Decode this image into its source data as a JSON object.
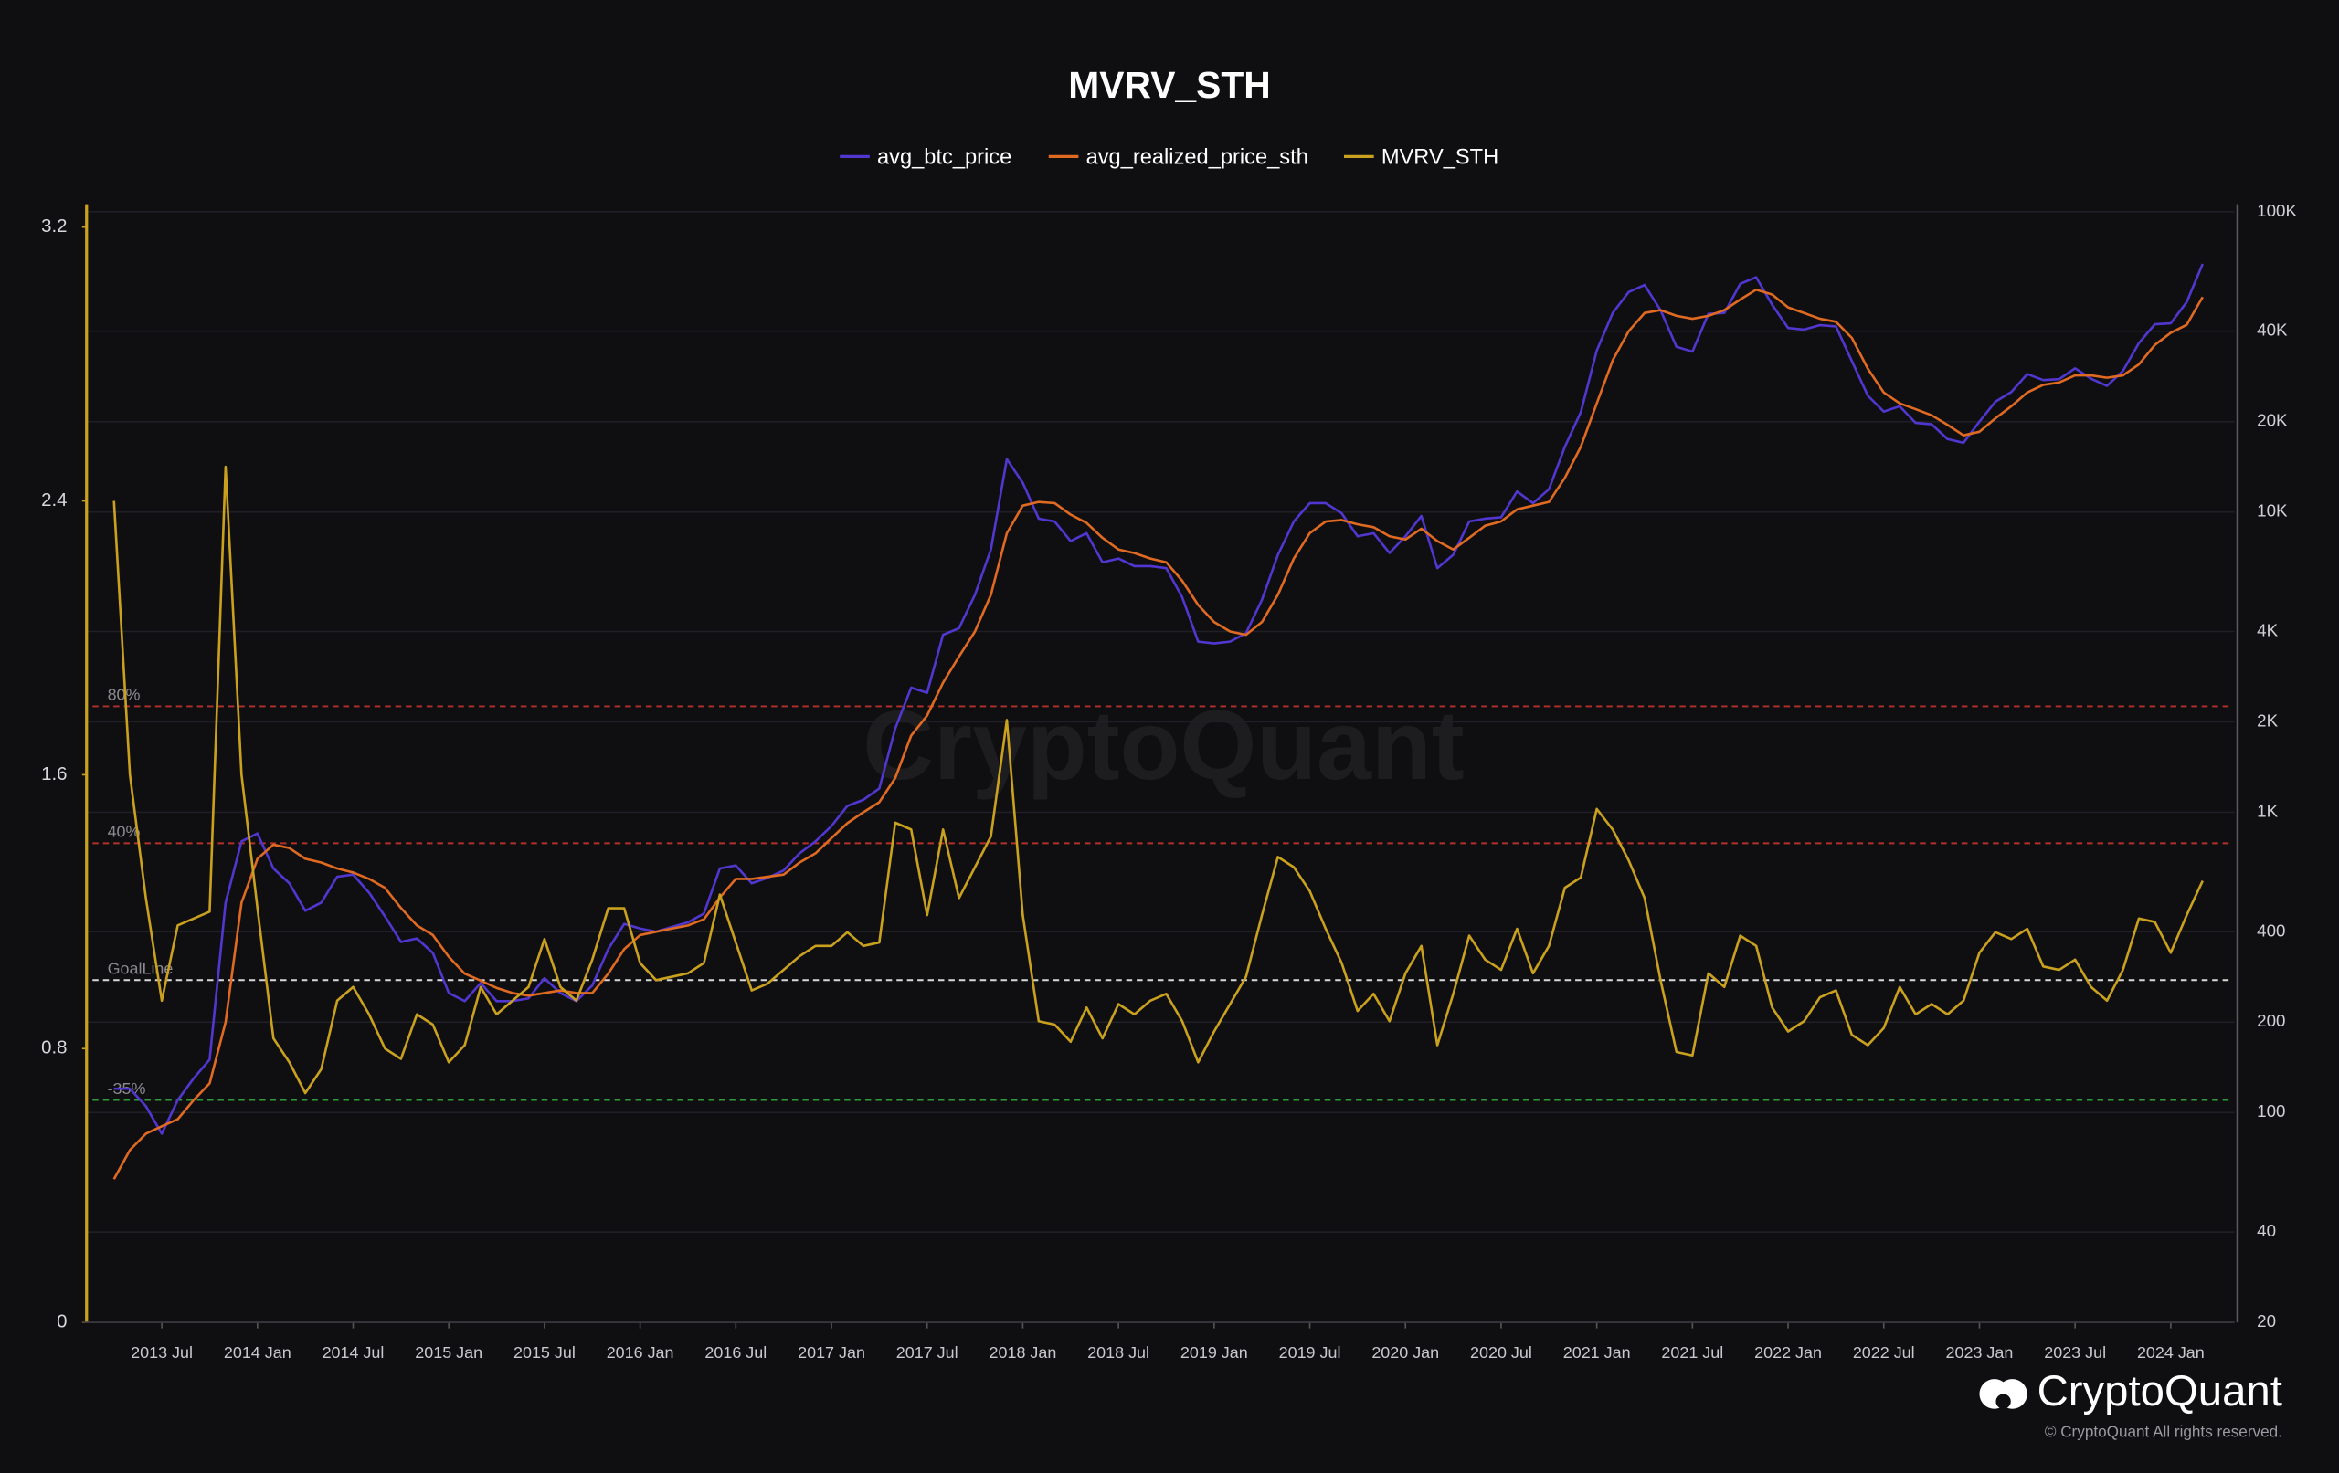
{
  "chart_data": {
    "type": "line",
    "title": "MVRV_STH",
    "watermark": "CryptoQuant",
    "brand": "CryptoQuant",
    "copyright": "© CryptoQuant All rights reserved.",
    "x": [
      "2013-04",
      "2013-05",
      "2013-06",
      "2013-07",
      "2013-08",
      "2013-09",
      "2013-10",
      "2013-11",
      "2013-12",
      "2014-01",
      "2014-02",
      "2014-03",
      "2014-04",
      "2014-05",
      "2014-06",
      "2014-07",
      "2014-08",
      "2014-09",
      "2014-10",
      "2014-11",
      "2014-12",
      "2015-01",
      "2015-02",
      "2015-03",
      "2015-04",
      "2015-05",
      "2015-06",
      "2015-07",
      "2015-08",
      "2015-09",
      "2015-10",
      "2015-11",
      "2015-12",
      "2016-01",
      "2016-02",
      "2016-03",
      "2016-04",
      "2016-05",
      "2016-06",
      "2016-07",
      "2016-08",
      "2016-09",
      "2016-10",
      "2016-11",
      "2016-12",
      "2017-01",
      "2017-02",
      "2017-03",
      "2017-04",
      "2017-05",
      "2017-06",
      "2017-07",
      "2017-08",
      "2017-09",
      "2017-10",
      "2017-11",
      "2017-12",
      "2018-01",
      "2018-02",
      "2018-03",
      "2018-04",
      "2018-05",
      "2018-06",
      "2018-07",
      "2018-08",
      "2018-09",
      "2018-10",
      "2018-11",
      "2018-12",
      "2019-01",
      "2019-02",
      "2019-03",
      "2019-04",
      "2019-05",
      "2019-06",
      "2019-07",
      "2019-08",
      "2019-09",
      "2019-10",
      "2019-11",
      "2019-12",
      "2020-01",
      "2020-02",
      "2020-03",
      "2020-04",
      "2020-05",
      "2020-06",
      "2020-07",
      "2020-08",
      "2020-09",
      "2020-10",
      "2020-11",
      "2020-12",
      "2021-01",
      "2021-02",
      "2021-03",
      "2021-04",
      "2021-05",
      "2021-06",
      "2021-07",
      "2021-08",
      "2021-09",
      "2021-10",
      "2021-11",
      "2021-12",
      "2022-01",
      "2022-02",
      "2022-03",
      "2022-04",
      "2022-05",
      "2022-06",
      "2022-07",
      "2022-08",
      "2022-09",
      "2022-10",
      "2022-11",
      "2022-12",
      "2023-01",
      "2023-02",
      "2023-03",
      "2023-04",
      "2023-05",
      "2023-06",
      "2023-07",
      "2023-08",
      "2023-09",
      "2023-10",
      "2023-11",
      "2023-12",
      "2024-01",
      "2024-02",
      "2024-03"
    ],
    "series": [
      {
        "name": "avg_btc_price",
        "color": "#5236d0",
        "axis": "y2",
        "values": [
          120,
          120,
          105,
          85,
          110,
          130,
          150,
          500,
          800,
          850,
          650,
          580,
          470,
          500,
          610,
          620,
          540,
          450,
          370,
          380,
          340,
          250,
          235,
          270,
          235,
          235,
          240,
          280,
          250,
          235,
          265,
          350,
          425,
          410,
          400,
          415,
          430,
          460,
          650,
          665,
          580,
          605,
          640,
          730,
          800,
          900,
          1050,
          1100,
          1200,
          1900,
          2600,
          2500,
          3900,
          4100,
          5300,
          7500,
          15000,
          12500,
          9500,
          9300,
          8000,
          8500,
          6800,
          7000,
          6600,
          6600,
          6500,
          5200,
          3700,
          3650,
          3700,
          3950,
          5100,
          7200,
          9300,
          10700,
          10700,
          9900,
          8300,
          8500,
          7300,
          8300,
          9700,
          6500,
          7200,
          9300,
          9500,
          9600,
          11700,
          10700,
          11900,
          16500,
          21500,
          34500,
          46000,
          54000,
          57000,
          47000,
          35500,
          34200,
          45700,
          46000,
          57500,
          60500,
          49000,
          41000,
          40500,
          41900,
          41500,
          31800,
          24400,
          21600,
          22500,
          19800,
          19600,
          17500,
          17000,
          20000,
          23300,
          25100,
          28800,
          27500,
          27700,
          30100,
          27800,
          26300,
          29500,
          36500,
          42200,
          42500,
          50000,
          67000
        ]
      },
      {
        "name": "avg_realized_price_sth",
        "color": "#e06a22",
        "axis": "y2",
        "values": [
          60,
          75,
          85,
          90,
          95,
          110,
          125,
          200,
          500,
          700,
          780,
          760,
          700,
          680,
          650,
          630,
          600,
          560,
          480,
          420,
          390,
          330,
          290,
          275,
          260,
          250,
          245,
          250,
          255,
          250,
          250,
          290,
          350,
          390,
          400,
          410,
          420,
          440,
          520,
          600,
          600,
          610,
          620,
          680,
          730,
          820,
          920,
          1000,
          1080,
          1300,
          1800,
          2100,
          2700,
          3300,
          4000,
          5300,
          8500,
          10500,
          10800,
          10700,
          9800,
          9200,
          8200,
          7500,
          7300,
          7000,
          6800,
          5900,
          4900,
          4300,
          4000,
          3900,
          4300,
          5300,
          7000,
          8500,
          9300,
          9400,
          9100,
          8900,
          8300,
          8100,
          8800,
          8000,
          7500,
          8200,
          9000,
          9300,
          10200,
          10500,
          10800,
          13000,
          16500,
          23000,
          32000,
          40000,
          46000,
          47000,
          45000,
          44000,
          45000,
          47000,
          51000,
          55000,
          53000,
          48000,
          46000,
          44000,
          43000,
          38000,
          30000,
          25000,
          23000,
          22000,
          21000,
          19500,
          18000,
          18500,
          20500,
          22500,
          25000,
          26500,
          27000,
          28500,
          28500,
          28000,
          28500,
          31000,
          36000,
          39500,
          42000,
          52000
        ]
      },
      {
        "name": "MVRV_STH",
        "color": "#c9a11e",
        "values": [
          2.4,
          1.6,
          1.24,
          0.94,
          1.16,
          1.18,
          1.2,
          2.5,
          1.6,
          1.21,
          0.83,
          0.76,
          0.67,
          0.74,
          0.94,
          0.98,
          0.9,
          0.8,
          0.77,
          0.9,
          0.87,
          0.76,
          0.81,
          0.98,
          0.9,
          0.94,
          0.98,
          1.12,
          0.98,
          0.94,
          1.06,
          1.21,
          1.21,
          1.05,
          1.0,
          1.01,
          1.02,
          1.05,
          1.25,
          1.11,
          0.97,
          0.99,
          1.03,
          1.07,
          1.1,
          1.1,
          1.14,
          1.1,
          1.11,
          1.46,
          1.44,
          1.19,
          1.44,
          1.24,
          1.33,
          1.42,
          1.76,
          1.19,
          0.88,
          0.87,
          0.82,
          0.92,
          0.83,
          0.93,
          0.9,
          0.94,
          0.96,
          0.88,
          0.76,
          0.85,
          0.93,
          1.01,
          1.19,
          1.36,
          1.33,
          1.26,
          1.15,
          1.05,
          0.91,
          0.96,
          0.88,
          1.02,
          1.1,
          0.81,
          0.96,
          1.13,
          1.06,
          1.03,
          1.15,
          1.02,
          1.1,
          1.27,
          1.3,
          1.5,
          1.44,
          1.35,
          1.24,
          1.0,
          0.79,
          0.78,
          1.02,
          0.98,
          1.13,
          1.1,
          0.92,
          0.85,
          0.88,
          0.95,
          0.97,
          0.84,
          0.81,
          0.86,
          0.98,
          0.9,
          0.93,
          0.9,
          0.94,
          1.08,
          1.14,
          1.12,
          1.15,
          1.04,
          1.03,
          1.06,
          0.98,
          0.94,
          1.03,
          1.18,
          1.17,
          1.08,
          1.19,
          1.29
        ]
      }
    ],
    "xlim": [
      "2013-02",
      "2024-05"
    ],
    "xticks": [
      {
        "value": "2013-07",
        "label": "2013 Jul"
      },
      {
        "value": "2014-01",
        "label": "2014 Jan"
      },
      {
        "value": "2014-07",
        "label": "2014 Jul"
      },
      {
        "value": "2015-01",
        "label": "2015 Jan"
      },
      {
        "value": "2015-07",
        "label": "2015 Jul"
      },
      {
        "value": "2016-01",
        "label": "2016 Jan"
      },
      {
        "value": "2016-07",
        "label": "2016 Jul"
      },
      {
        "value": "2017-01",
        "label": "2017 Jan"
      },
      {
        "value": "2017-07",
        "label": "2017 Jul"
      },
      {
        "value": "2018-01",
        "label": "2018 Jan"
      },
      {
        "value": "2018-07",
        "label": "2018 Jul"
      },
      {
        "value": "2019-01",
        "label": "2019 Jan"
      },
      {
        "value": "2019-07",
        "label": "2019 Jul"
      },
      {
        "value": "2020-01",
        "label": "2020 Jan"
      },
      {
        "value": "2020-07",
        "label": "2020 Jul"
      },
      {
        "value": "2021-01",
        "label": "2021 Jan"
      },
      {
        "value": "2021-07",
        "label": "2021 Jul"
      },
      {
        "value": "2022-01",
        "label": "2022 Jan"
      },
      {
        "value": "2022-07",
        "label": "2022 Jul"
      },
      {
        "value": "2023-01",
        "label": "2023 Jan"
      },
      {
        "value": "2023-07",
        "label": "2023 Jul"
      },
      {
        "value": "2024-01",
        "label": "2024 Jan"
      }
    ],
    "ylim": [
      0,
      3.245
    ],
    "yticks": [
      0,
      0.8,
      1.6,
      2.4,
      3.2
    ],
    "y2lim": [
      20,
      100000
    ],
    "y2_log": true,
    "y2ticks": [
      20,
      40,
      100,
      200,
      400,
      {
        "value": 1000,
        "label": "1K"
      },
      {
        "value": 2000,
        "label": "2K"
      },
      {
        "value": 4000,
        "label": "4K"
      },
      {
        "value": 10000,
        "label": "10K"
      },
      {
        "value": 20000,
        "label": "20K"
      },
      {
        "value": 40000,
        "label": "40K"
      },
      {
        "value": 100000,
        "label": "100K"
      }
    ],
    "grid": true,
    "reference_lines": [
      {
        "label": "80%",
        "value": 1.8,
        "color": "#b3302a"
      },
      {
        "label": "40%",
        "value": 1.4,
        "color": "#b3302a"
      },
      {
        "label": "GoalLine",
        "value": 1.0,
        "color": "#d8d8d8"
      },
      {
        "label": "-35%",
        "value": 0.65,
        "color": "#2e9a3a"
      }
    ]
  }
}
